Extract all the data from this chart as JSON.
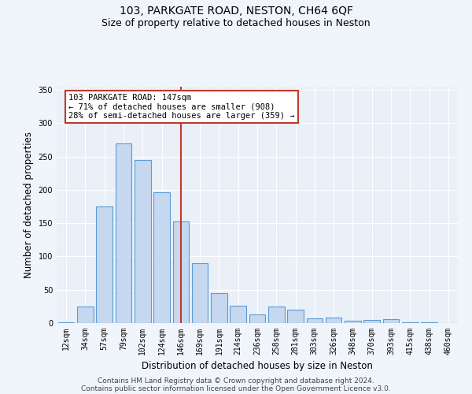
{
  "title": "103, PARKGATE ROAD, NESTON, CH64 6QF",
  "subtitle": "Size of property relative to detached houses in Neston",
  "xlabel": "Distribution of detached houses by size in Neston",
  "ylabel": "Number of detached properties",
  "categories": [
    "12sqm",
    "34sqm",
    "57sqm",
    "79sqm",
    "102sqm",
    "124sqm",
    "146sqm",
    "169sqm",
    "191sqm",
    "214sqm",
    "236sqm",
    "258sqm",
    "281sqm",
    "303sqm",
    "326sqm",
    "348sqm",
    "370sqm",
    "393sqm",
    "415sqm",
    "438sqm",
    "460sqm"
  ],
  "values": [
    1,
    25,
    175,
    270,
    245,
    197,
    153,
    90,
    45,
    26,
    13,
    25,
    20,
    7,
    8,
    4,
    5,
    6,
    1,
    1,
    0
  ],
  "bar_color": "#c5d8f0",
  "bar_edge_color": "#5b9bd5",
  "property_sqm": 147,
  "property_label": "103 PARKGATE ROAD: 147sqm",
  "annotation_line1": "← 71% of detached houses are smaller (908)",
  "annotation_line2": "28% of semi-detached houses are larger (359) →",
  "vline_color": "#c0392b",
  "annotation_box_color": "#ffffff",
  "annotation_box_edge": "#c0392b",
  "ylim": [
    0,
    355
  ],
  "yticks": [
    0,
    50,
    100,
    150,
    200,
    250,
    300,
    350
  ],
  "bg_color": "#f0f4fb",
  "plot_bg_color": "#eaf0f8",
  "footer1": "Contains HM Land Registry data © Crown copyright and database right 2024.",
  "footer2": "Contains public sector information licensed under the Open Government Licence v3.0.",
  "title_fontsize": 10,
  "subtitle_fontsize": 9,
  "tick_fontsize": 7,
  "xlabel_fontsize": 8.5,
  "ylabel_fontsize": 8.5,
  "footer_fontsize": 6.5,
  "annot_fontsize": 7.5
}
